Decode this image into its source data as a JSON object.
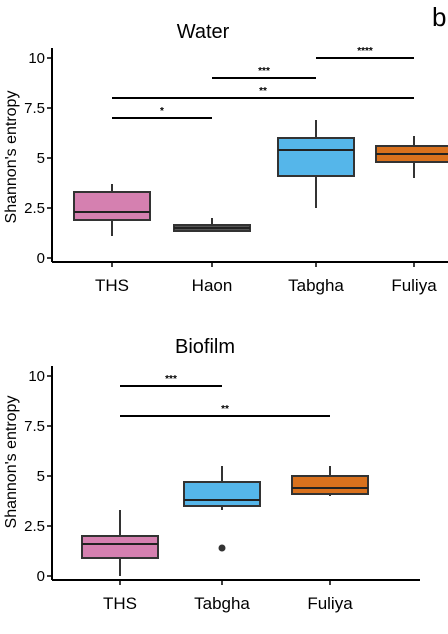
{
  "panel_label": "b",
  "colors": {
    "THS": "#d580b0",
    "Haon": "#555555",
    "Tabgha": "#55b6ea",
    "Fuliya": "#d9711d"
  },
  "chart_data": [
    {
      "type": "box",
      "title": "Water",
      "ylabel": "Shannon's entropy",
      "ylim": [
        -0.2,
        10.3
      ],
      "ytick_values": [
        0,
        2.5,
        5,
        7.5,
        10
      ],
      "ytick_labels": [
        "0",
        "2.5",
        "5",
        "7.5",
        "10"
      ],
      "categories": [
        "THS",
        "Haon",
        "Tabgha",
        "Fuliya"
      ],
      "boxes": [
        {
          "category": "THS",
          "whisker_low": 1.1,
          "q1": 1.9,
          "median": 2.3,
          "q3": 3.3,
          "whisker_high": 3.7,
          "outliers": []
        },
        {
          "category": "Haon",
          "whisker_low": 1.3,
          "q1": 1.35,
          "median": 1.5,
          "q3": 1.65,
          "whisker_high": 2.0,
          "outliers": []
        },
        {
          "category": "Tabgha",
          "whisker_low": 2.5,
          "q1": 4.1,
          "median": 5.4,
          "q3": 6.0,
          "whisker_high": 6.9,
          "outliers": []
        },
        {
          "category": "Fuliya",
          "whisker_low": 4.0,
          "q1": 4.8,
          "median": 5.2,
          "q3": 5.6,
          "whisker_high": 6.1,
          "outliers": []
        }
      ],
      "significance": [
        {
          "from": "THS",
          "to": "Haon",
          "y": 7.0,
          "label": "*"
        },
        {
          "from": "THS",
          "to": "Fuliya",
          "y": 8.0,
          "label": "**"
        },
        {
          "from": "Haon",
          "to": "Tabgha",
          "y": 9.0,
          "label": "***"
        },
        {
          "from": "Tabgha",
          "to": "Fuliya",
          "y": 10.0,
          "label": "****"
        }
      ]
    },
    {
      "type": "box",
      "title": "Biofilm",
      "ylabel": "Shannon's entropy",
      "ylim": [
        -0.2,
        10.3
      ],
      "ytick_values": [
        0,
        2.5,
        5,
        7.5,
        10
      ],
      "ytick_labels": [
        "0",
        "2.5",
        "5",
        "7.5",
        "10"
      ],
      "categories": [
        "THS",
        "Tabgha",
        "Fuliya"
      ],
      "boxes": [
        {
          "category": "THS",
          "whisker_low": 0.0,
          "q1": 0.9,
          "median": 1.6,
          "q3": 2.0,
          "whisker_high": 3.3,
          "outliers": []
        },
        {
          "category": "Tabgha",
          "whisker_low": 3.3,
          "q1": 3.5,
          "median": 3.8,
          "q3": 4.7,
          "whisker_high": 5.5,
          "outliers": [
            1.4
          ]
        },
        {
          "category": "Fuliya",
          "whisker_low": 4.0,
          "q1": 4.1,
          "median": 4.4,
          "q3": 5.0,
          "whisker_high": 5.5,
          "outliers": []
        }
      ],
      "significance": [
        {
          "from": "THS",
          "to": "Tabgha",
          "y": 9.5,
          "label": "***"
        },
        {
          "from": "THS",
          "to": "Fuliya",
          "y": 8.0,
          "label": "**"
        }
      ]
    }
  ]
}
